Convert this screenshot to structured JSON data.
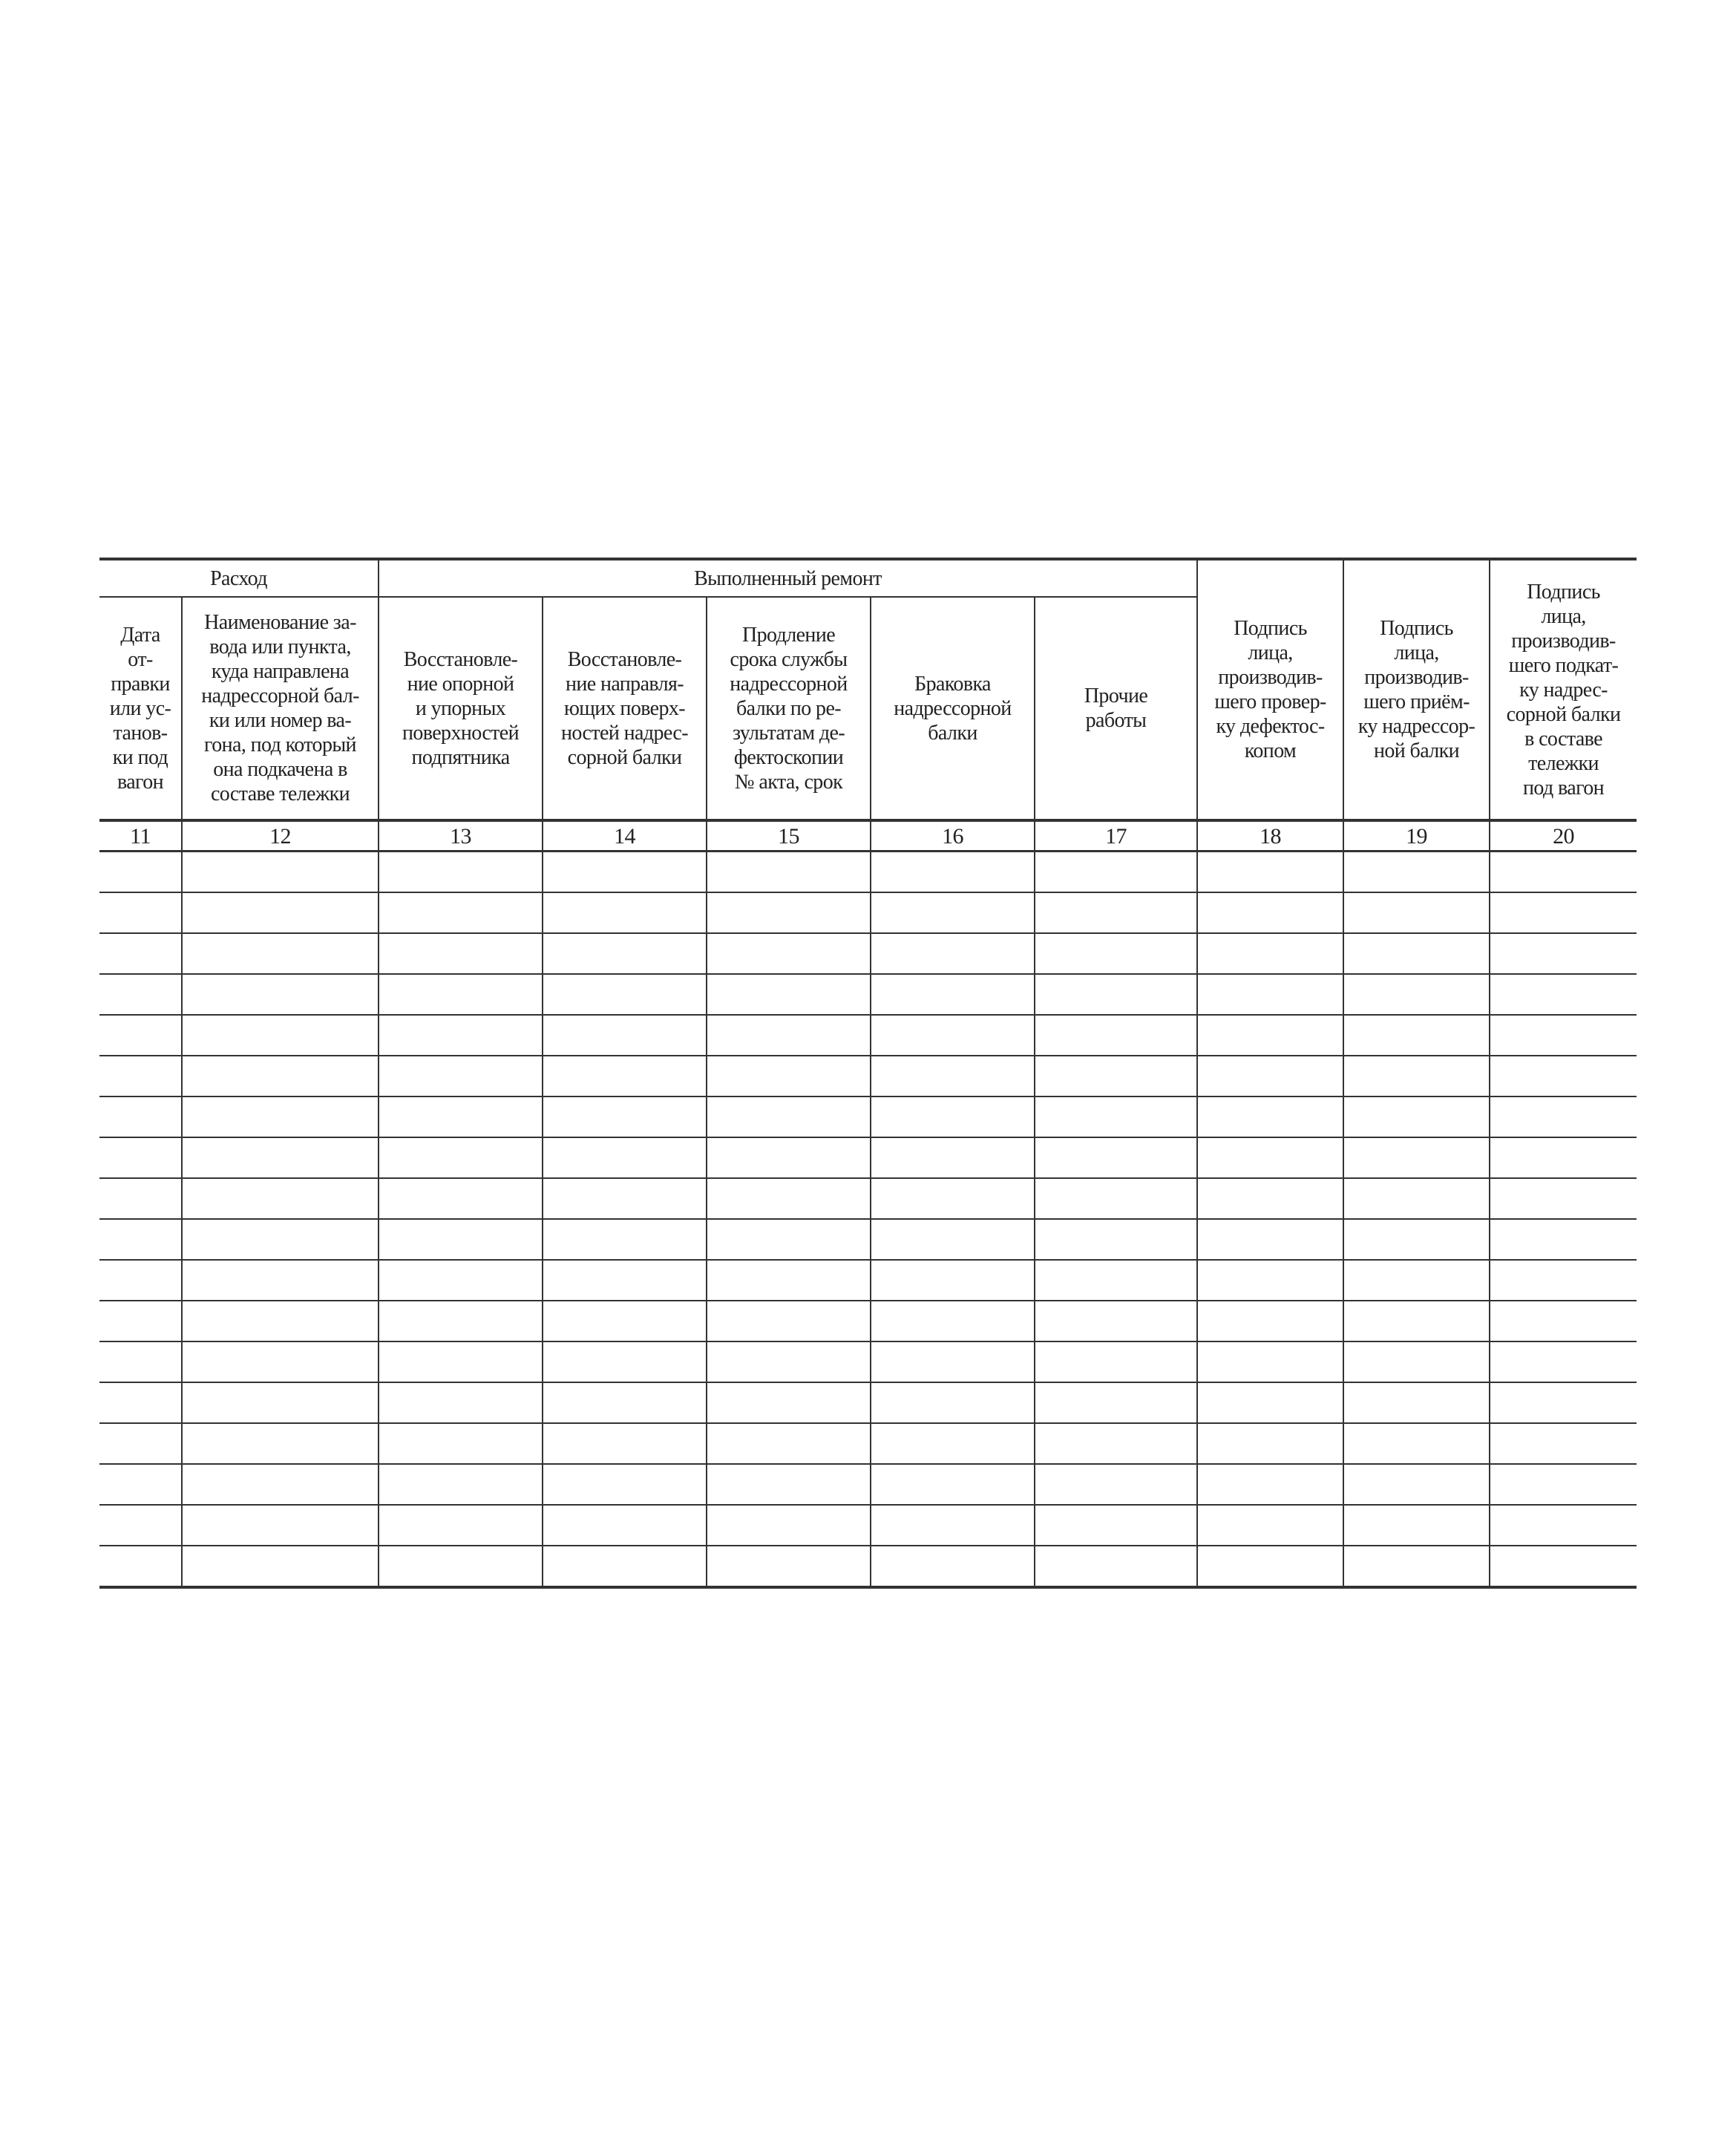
{
  "table": {
    "group_headers": {
      "expense": "Расход",
      "repair": "Выполненный ремонт"
    },
    "columns": [
      {
        "num": "11",
        "label": "Дата\nот-\nправки\nили ус-\nтанов-\nки под\nвагон"
      },
      {
        "num": "12",
        "label": "Наименование за-\nвода или пункта,\nкуда направлена\nнадрессорной бал-\nки или номер ва-\nгона, под который\nона подкачена в\nсоставе тележки"
      },
      {
        "num": "13",
        "label": "Восстановле-\nние опорной\nи упорных\nповерхностей\nподпятника"
      },
      {
        "num": "14",
        "label": "Восстановле-\nние направля-\nющих поверх-\nностей надрес-\nсорной балки"
      },
      {
        "num": "15",
        "label": "Продление\nсрока службы\nнадрессорной\nбалки по ре-\nзультатам де-\nфектоскопии\n№ акта, срок"
      },
      {
        "num": "16",
        "label": "Браковка\nнадрессорной\nбалки"
      },
      {
        "num": "17",
        "label": "Прочие\nработы"
      },
      {
        "num": "18",
        "label": "Подпись\nлица,\nпроизводив-\nшего провер-\nку дефектос-\nкопом"
      },
      {
        "num": "19",
        "label": "Подпись\nлица,\nпроизводив-\nшего приём-\nку надрессор-\nной балки"
      },
      {
        "num": "20",
        "label": "Подпись\nлица,\nпроизводив-\nшего подкат-\nку надрес-\nсорной балки\nв составе\nтележки\nпод вагон"
      }
    ],
    "empty_rows": 18
  }
}
